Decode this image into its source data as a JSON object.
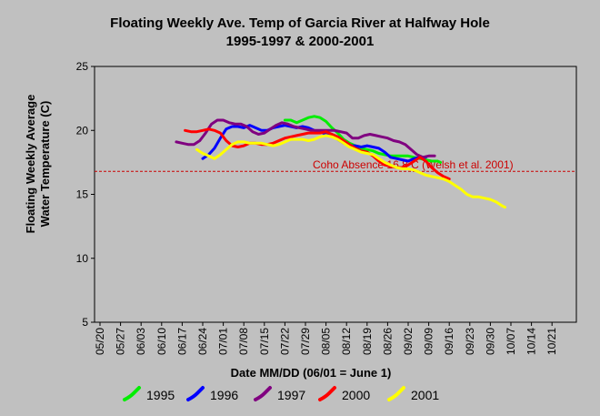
{
  "chart_data": {
    "type": "line",
    "title": "Floating Weekly Ave. Temp of  Garcia River at Halfway Hole",
    "subtitle": "1995-1997 & 2000-2001",
    "xlabel": "Date MM/DD (06/01 = June 1)",
    "ylabel_line1": "Floating Weekly Average",
    "ylabel_line2": "Water Temperature (C)",
    "ylim": [
      5,
      25
    ],
    "yticks": [
      5,
      10,
      15,
      20,
      25
    ],
    "xticks": [
      "05/20",
      "05/27",
      "06/03",
      "06/10",
      "06/17",
      "06/24",
      "07/01",
      "07/08",
      "07/15",
      "07/22",
      "07/29",
      "08/05",
      "08/12",
      "08/19",
      "08/26",
      "09/02",
      "09/09",
      "09/16",
      "09/23",
      "09/30",
      "10/07",
      "10/14",
      "10/21"
    ],
    "grid": false,
    "legend_position": "bottom",
    "reference_line": {
      "value": 16.8,
      "label": "Coho Absence 16.8 C (Welsh et al. 2001)",
      "color": "#cc0000"
    },
    "series": [
      {
        "name": "1995",
        "color": "#00ee00",
        "points": [
          [
            63,
            20.8
          ],
          [
            65,
            20.8
          ],
          [
            67,
            20.6
          ],
          [
            69,
            20.8
          ],
          [
            71,
            21.0
          ],
          [
            73,
            21.1
          ],
          [
            75,
            21.0
          ],
          [
            77,
            20.7
          ],
          [
            79,
            20.2
          ],
          [
            81,
            19.8
          ],
          [
            83,
            19.3
          ],
          [
            85,
            19.0
          ],
          [
            87,
            18.8
          ],
          [
            89,
            18.6
          ],
          [
            91,
            18.5
          ],
          [
            93,
            18.4
          ],
          [
            95,
            18.2
          ],
          [
            97,
            18.1
          ],
          [
            99,
            18.0
          ],
          [
            101,
            18.0
          ],
          [
            103,
            18.0
          ],
          [
            105,
            18.0
          ],
          [
            107,
            17.9
          ],
          [
            109,
            17.8
          ],
          [
            111,
            17.7
          ],
          [
            113,
            17.6
          ],
          [
            115,
            17.6
          ],
          [
            116,
            17.5
          ]
        ]
      },
      {
        "name": "1996",
        "color": "#0000ff",
        "points": [
          [
            35,
            17.8
          ],
          [
            37,
            18.1
          ],
          [
            39,
            18.6
          ],
          [
            41,
            19.4
          ],
          [
            43,
            20.1
          ],
          [
            45,
            20.3
          ],
          [
            47,
            20.3
          ],
          [
            49,
            20.2
          ],
          [
            51,
            20.4
          ],
          [
            53,
            20.2
          ],
          [
            55,
            20.0
          ],
          [
            57,
            20.0
          ],
          [
            59,
            20.2
          ],
          [
            61,
            20.3
          ],
          [
            63,
            20.4
          ],
          [
            65,
            20.3
          ],
          [
            67,
            20.2
          ],
          [
            69,
            20.3
          ],
          [
            71,
            20.2
          ],
          [
            73,
            20.0
          ],
          [
            75,
            19.9
          ],
          [
            77,
            19.7
          ],
          [
            79,
            19.6
          ],
          [
            81,
            19.3
          ],
          [
            83,
            19.0
          ],
          [
            85,
            18.8
          ],
          [
            87,
            18.8
          ],
          [
            89,
            18.7
          ],
          [
            91,
            18.8
          ],
          [
            93,
            18.7
          ],
          [
            95,
            18.6
          ],
          [
            97,
            18.3
          ],
          [
            99,
            17.9
          ],
          [
            101,
            17.8
          ],
          [
            103,
            17.7
          ],
          [
            105,
            17.6
          ],
          [
            107,
            17.8
          ],
          [
            109,
            17.9
          ],
          [
            111,
            17.9
          ]
        ]
      },
      {
        "name": "1997",
        "color": "#800080",
        "points": [
          [
            26,
            19.1
          ],
          [
            28,
            19.0
          ],
          [
            30,
            18.9
          ],
          [
            32,
            18.9
          ],
          [
            34,
            19.2
          ],
          [
            36,
            19.8
          ],
          [
            38,
            20.5
          ],
          [
            40,
            20.8
          ],
          [
            42,
            20.8
          ],
          [
            44,
            20.6
          ],
          [
            46,
            20.5
          ],
          [
            48,
            20.5
          ],
          [
            50,
            20.3
          ],
          [
            52,
            19.9
          ],
          [
            54,
            19.7
          ],
          [
            56,
            19.8
          ],
          [
            58,
            20.1
          ],
          [
            60,
            20.4
          ],
          [
            62,
            20.6
          ],
          [
            64,
            20.5
          ],
          [
            66,
            20.3
          ],
          [
            68,
            20.2
          ],
          [
            70,
            20.1
          ],
          [
            72,
            20.0
          ],
          [
            74,
            20.0
          ],
          [
            76,
            20.0
          ],
          [
            78,
            20.0
          ],
          [
            80,
            20.0
          ],
          [
            82,
            19.9
          ],
          [
            84,
            19.8
          ],
          [
            86,
            19.4
          ],
          [
            88,
            19.4
          ],
          [
            90,
            19.6
          ],
          [
            92,
            19.7
          ],
          [
            94,
            19.6
          ],
          [
            96,
            19.5
          ],
          [
            98,
            19.4
          ],
          [
            100,
            19.2
          ],
          [
            102,
            19.1
          ],
          [
            104,
            18.9
          ],
          [
            106,
            18.5
          ],
          [
            108,
            18.1
          ],
          [
            110,
            17.9
          ],
          [
            112,
            18.0
          ],
          [
            114,
            18.0
          ]
        ]
      },
      {
        "name": "2000",
        "color": "#ff0000",
        "points": [
          [
            29,
            20.0
          ],
          [
            31,
            19.9
          ],
          [
            33,
            19.9
          ],
          [
            35,
            20.0
          ],
          [
            37,
            20.1
          ],
          [
            39,
            20.0
          ],
          [
            41,
            19.8
          ],
          [
            43,
            19.2
          ],
          [
            45,
            18.8
          ],
          [
            47,
            18.7
          ],
          [
            49,
            18.8
          ],
          [
            51,
            19.0
          ],
          [
            53,
            19.0
          ],
          [
            55,
            18.9
          ],
          [
            57,
            18.9
          ],
          [
            59,
            19.0
          ],
          [
            61,
            19.2
          ],
          [
            63,
            19.4
          ],
          [
            65,
            19.5
          ],
          [
            67,
            19.6
          ],
          [
            69,
            19.7
          ],
          [
            71,
            19.8
          ],
          [
            73,
            19.8
          ],
          [
            75,
            19.8
          ],
          [
            77,
            19.9
          ],
          [
            79,
            19.7
          ],
          [
            81,
            19.5
          ],
          [
            83,
            19.2
          ],
          [
            85,
            18.9
          ],
          [
            87,
            18.6
          ],
          [
            89,
            18.4
          ],
          [
            91,
            18.3
          ],
          [
            93,
            18.0
          ],
          [
            95,
            17.6
          ],
          [
            97,
            17.3
          ],
          [
            99,
            17.2
          ],
          [
            101,
            17.1
          ],
          [
            103,
            17.1
          ],
          [
            105,
            17.3
          ],
          [
            107,
            17.6
          ],
          [
            109,
            17.9
          ],
          [
            111,
            17.6
          ],
          [
            113,
            17.1
          ],
          [
            115,
            16.7
          ],
          [
            117,
            16.4
          ],
          [
            119,
            16.2
          ]
        ]
      },
      {
        "name": "2001",
        "color": "#ffff00",
        "points": [
          [
            33,
            18.5
          ],
          [
            35,
            18.2
          ],
          [
            37,
            18.0
          ],
          [
            39,
            17.8
          ],
          [
            41,
            18.1
          ],
          [
            43,
            18.5
          ],
          [
            45,
            18.9
          ],
          [
            47,
            19.1
          ],
          [
            49,
            19.1
          ],
          [
            51,
            19.0
          ],
          [
            53,
            19.0
          ],
          [
            55,
            19.0
          ],
          [
            57,
            18.9
          ],
          [
            59,
            18.8
          ],
          [
            61,
            18.9
          ],
          [
            63,
            19.1
          ],
          [
            65,
            19.3
          ],
          [
            67,
            19.3
          ],
          [
            69,
            19.3
          ],
          [
            71,
            19.2
          ],
          [
            73,
            19.3
          ],
          [
            75,
            19.5
          ],
          [
            77,
            19.6
          ],
          [
            79,
            19.5
          ],
          [
            81,
            19.3
          ],
          [
            83,
            19.0
          ],
          [
            85,
            18.7
          ],
          [
            87,
            18.5
          ],
          [
            89,
            18.3
          ],
          [
            91,
            18.2
          ],
          [
            93,
            18.1
          ],
          [
            95,
            17.8
          ],
          [
            97,
            17.5
          ],
          [
            99,
            17.3
          ],
          [
            101,
            17.1
          ],
          [
            103,
            17.0
          ],
          [
            105,
            17.0
          ],
          [
            107,
            16.9
          ],
          [
            109,
            16.7
          ],
          [
            111,
            16.5
          ],
          [
            113,
            16.4
          ],
          [
            115,
            16.3
          ],
          [
            117,
            16.2
          ],
          [
            119,
            16.0
          ],
          [
            121,
            15.7
          ],
          [
            123,
            15.4
          ],
          [
            125,
            15.0
          ],
          [
            127,
            14.8
          ],
          [
            129,
            14.8
          ],
          [
            131,
            14.7
          ],
          [
            133,
            14.6
          ],
          [
            135,
            14.4
          ],
          [
            137,
            14.1
          ],
          [
            138,
            14.0
          ]
        ]
      }
    ]
  },
  "x_axis_note": "x values are day offsets from 05/20"
}
